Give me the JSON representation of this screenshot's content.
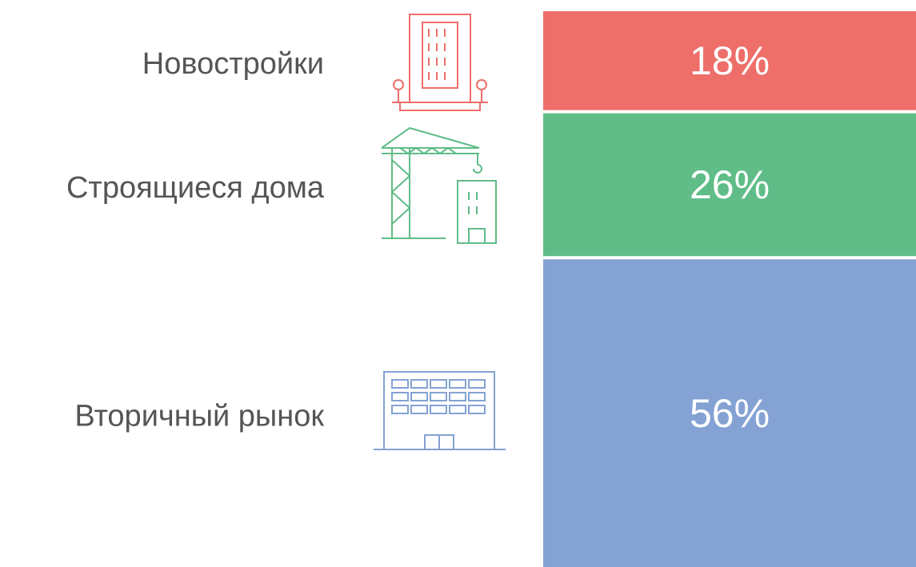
{
  "chart_data": {
    "type": "stacked-bar",
    "categories": [
      "Новостройки",
      "Строящиеся дома",
      "Вторичный рынок"
    ],
    "values": [
      18,
      26,
      56
    ],
    "value_labels": [
      "18%",
      "26%",
      "56%"
    ],
    "colors": [
      "#ee6e6a",
      "#60bd88",
      "#84a2d3"
    ]
  }
}
